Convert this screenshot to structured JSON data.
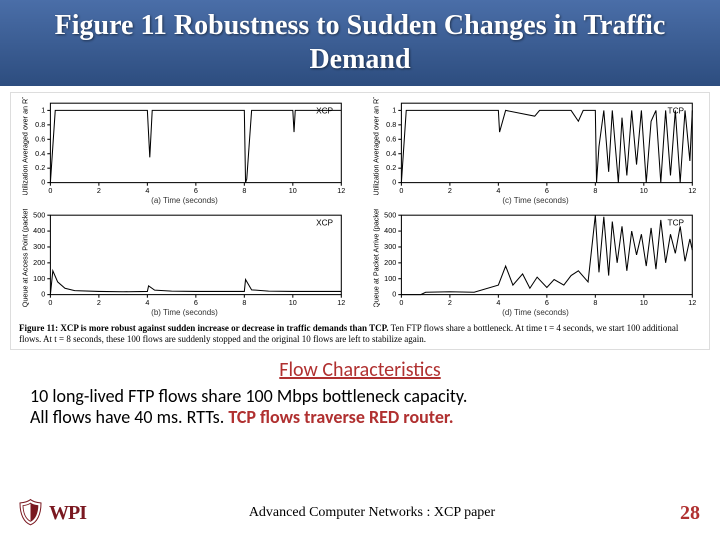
{
  "title": "Figure 11 Robustness to Sudden Changes in Traffic Demand",
  "charts": {
    "panel_a": {
      "type": "line",
      "series_label": "XCP",
      "xlabel": "(a) Time (seconds)",
      "ylabel": "Utilization Averaged over an RTT",
      "xlim": [
        0,
        12
      ],
      "ylim": [
        0,
        1.1
      ],
      "xticks": [
        0,
        2,
        4,
        6,
        8,
        10,
        12
      ],
      "yticks": [
        0,
        0.2,
        0.4,
        0.6,
        0.8,
        1
      ],
      "line_color": "#000000",
      "background_color": "#ffffff",
      "data": [
        [
          0,
          0
        ],
        [
          0.2,
          1
        ],
        [
          4,
          1
        ],
        [
          4.1,
          0.35
        ],
        [
          4.2,
          1
        ],
        [
          8,
          1
        ],
        [
          8.05,
          0
        ],
        [
          8.1,
          0.05
        ],
        [
          8.3,
          1
        ],
        [
          10,
          1
        ],
        [
          10.05,
          0.7
        ],
        [
          10.1,
          1
        ],
        [
          12,
          1
        ]
      ]
    },
    "panel_b": {
      "type": "line",
      "series_label": "XCP",
      "xlabel": "(b) Time (seconds)",
      "ylabel": "Queue at Access Point (packets)",
      "xlim": [
        0,
        12
      ],
      "ylim": [
        0,
        500
      ],
      "xticks": [
        0,
        2,
        4,
        6,
        8,
        10,
        12
      ],
      "yticks": [
        0,
        100,
        200,
        300,
        400,
        500
      ],
      "line_color": "#000000",
      "background_color": "#ffffff",
      "data": [
        [
          0,
          0
        ],
        [
          0.1,
          150
        ],
        [
          0.3,
          80
        ],
        [
          0.6,
          40
        ],
        [
          1,
          25
        ],
        [
          2,
          20
        ],
        [
          3,
          18
        ],
        [
          4,
          20
        ],
        [
          4.05,
          55
        ],
        [
          4.3,
          28
        ],
        [
          5,
          22
        ],
        [
          6,
          20
        ],
        [
          7,
          20
        ],
        [
          8,
          20
        ],
        [
          8.05,
          95
        ],
        [
          8.3,
          30
        ],
        [
          9,
          22
        ],
        [
          10,
          20
        ],
        [
          11,
          20
        ],
        [
          12,
          20
        ]
      ]
    },
    "panel_c": {
      "type": "line",
      "series_label": "TCP",
      "xlabel": "(c) Time (seconds)",
      "ylabel": "Utilization Averaged over an RTT",
      "xlim": [
        0,
        12
      ],
      "ylim": [
        0,
        1.1
      ],
      "xticks": [
        0,
        2,
        4,
        6,
        8,
        10,
        12
      ],
      "yticks": [
        0,
        0.2,
        0.4,
        0.6,
        0.8,
        1
      ],
      "line_color": "#000000",
      "background_color": "#ffffff",
      "data": [
        [
          0,
          0
        ],
        [
          0.2,
          1
        ],
        [
          4,
          1
        ],
        [
          4.05,
          0.7
        ],
        [
          4.3,
          1
        ],
        [
          5.5,
          0.92
        ],
        [
          5.7,
          1
        ],
        [
          7,
          1
        ],
        [
          7.3,
          0.85
        ],
        [
          7.5,
          1
        ],
        [
          8,
          1
        ],
        [
          8.05,
          0
        ],
        [
          8.15,
          0.5
        ],
        [
          8.35,
          1
        ],
        [
          8.55,
          0.15
        ],
        [
          8.7,
          1
        ],
        [
          8.95,
          0
        ],
        [
          9.1,
          0.9
        ],
        [
          9.3,
          0.1
        ],
        [
          9.5,
          1
        ],
        [
          9.7,
          0.25
        ],
        [
          9.9,
          1
        ],
        [
          10.1,
          0
        ],
        [
          10.3,
          0.85
        ],
        [
          10.5,
          1
        ],
        [
          10.7,
          0
        ],
        [
          10.9,
          1
        ],
        [
          11.1,
          0.1
        ],
        [
          11.3,
          1
        ],
        [
          11.5,
          0
        ],
        [
          11.7,
          1
        ],
        [
          11.9,
          0.3
        ],
        [
          12,
          1
        ]
      ]
    },
    "panel_d": {
      "type": "line",
      "series_label": "TCP",
      "xlabel": "(d) Time (seconds)",
      "ylabel": "Queue at Packet Arrive (packets)",
      "xlim": [
        0,
        12
      ],
      "ylim": [
        0,
        500
      ],
      "xticks": [
        0,
        2,
        4,
        6,
        8,
        10,
        12
      ],
      "yticks": [
        0,
        100,
        200,
        300,
        400,
        500
      ],
      "line_color": "#000000",
      "background_color": "#ffffff",
      "data": [
        [
          0,
          0
        ],
        [
          0.8,
          0
        ],
        [
          1,
          15
        ],
        [
          2,
          18
        ],
        [
          3,
          15
        ],
        [
          4,
          60
        ],
        [
          4.3,
          180
        ],
        [
          4.6,
          60
        ],
        [
          5,
          130
        ],
        [
          5.3,
          40
        ],
        [
          5.6,
          110
        ],
        [
          6,
          45
        ],
        [
          6.3,
          95
        ],
        [
          6.7,
          60
        ],
        [
          7,
          120
        ],
        [
          7.3,
          150
        ],
        [
          7.7,
          80
        ],
        [
          8,
          500
        ],
        [
          8.15,
          140
        ],
        [
          8.35,
          490
        ],
        [
          8.55,
          120
        ],
        [
          8.7,
          460
        ],
        [
          8.9,
          200
        ],
        [
          9.1,
          430
        ],
        [
          9.3,
          150
        ],
        [
          9.5,
          400
        ],
        [
          9.7,
          250
        ],
        [
          9.9,
          380
        ],
        [
          10.1,
          180
        ],
        [
          10.3,
          420
        ],
        [
          10.5,
          160
        ],
        [
          10.7,
          470
        ],
        [
          10.9,
          200
        ],
        [
          11.1,
          380
        ],
        [
          11.3,
          260
        ],
        [
          11.5,
          430
        ],
        [
          11.7,
          210
        ],
        [
          11.9,
          350
        ],
        [
          12,
          280
        ]
      ]
    }
  },
  "caption": {
    "head": "Figure 11: XCP is more robust against sudden increase or decrease in traffic demands than TCP.",
    "tail": " Ten FTP flows share a bottleneck. At time t = 4 seconds, we start 100 additional flows. At t = 8 seconds, these 100 flows are suddenly stopped and the original 10 flows are left to stabilize again."
  },
  "flow_header": "Flow Characteristics",
  "body_line1": "10 long-lived FTP flows share 100 Mbps bottleneck capacity.",
  "body_line2_a": "All flows have 40 ms. RTTs.  ",
  "body_line2_b": "TCP flows traverse RED router.",
  "footer": {
    "logo_text": "WPI",
    "center": "Advanced Computer Networks  :  XCP paper",
    "slide": "28"
  }
}
